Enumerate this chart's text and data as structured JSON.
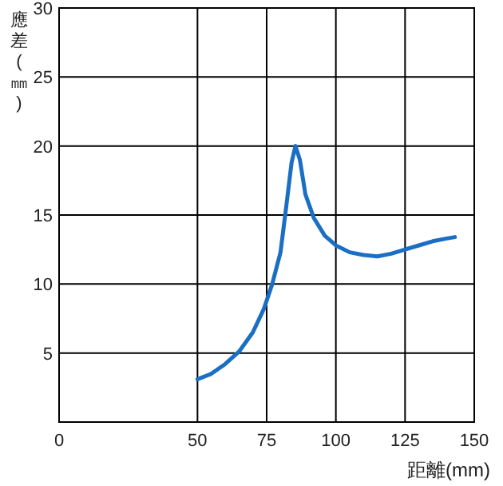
{
  "chart_data": {
    "type": "line",
    "xlabel": "距離(mm)",
    "ylabel": "應差(㎜)",
    "xlim": [
      0,
      150
    ],
    "xticks": [
      0,
      50,
      75,
      100,
      125,
      150
    ],
    "ylim": [
      0,
      30
    ],
    "yticks": [
      5,
      10,
      15,
      20,
      25,
      30
    ],
    "grid": true,
    "series": [
      {
        "color": "#1a6fc4",
        "x": [
          50,
          55,
          60,
          65,
          70,
          74,
          77,
          80,
          82,
          84,
          85.4,
          87,
          89,
          92,
          96,
          100,
          105,
          110,
          115,
          120,
          125,
          130,
          135,
          140,
          143
        ],
        "values": [
          3.1,
          3.5,
          4.2,
          5.1,
          6.5,
          8.2,
          10,
          12.3,
          15.5,
          18.8,
          20,
          19,
          16.5,
          14.8,
          13.5,
          12.8,
          12.3,
          12.1,
          12.0,
          12.2,
          12.5,
          12.8,
          13.1,
          13.3,
          13.4
        ]
      }
    ]
  }
}
